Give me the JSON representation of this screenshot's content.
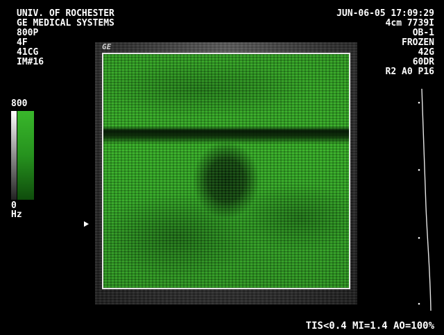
{
  "header_left": {
    "institution": "UNIV. OF ROCHESTER",
    "manufacturer": "GE MEDICAL SYSTEMS",
    "line3": "800P",
    "line4": "4F",
    "line5": "41CG",
    "image_number": "IM#16"
  },
  "header_right": {
    "datetime": "JUN-06-05 17:09:29",
    "depth": "4cm 7739I",
    "preset": "OB-1",
    "state": "FROZEN",
    "gain": "42G",
    "dynamic_range": "60DR",
    "params": "R2 A0 P16"
  },
  "logo": "GE",
  "colorbar": {
    "top_label": "800",
    "bottom_label": "0",
    "unit": "Hz"
  },
  "footer": {
    "indices": "TIS<0.4 MI=1.4 AO=100%"
  },
  "colors": {
    "doppler_green": "#34aa26",
    "text": "#ffffff",
    "background": "#000000"
  }
}
